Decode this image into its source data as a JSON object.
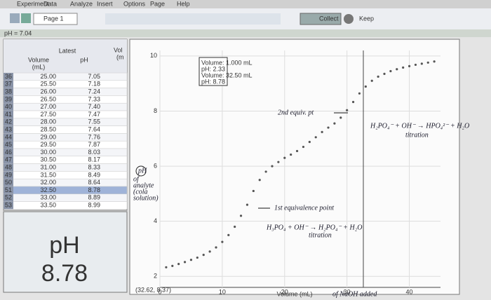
{
  "menu": [
    "Experiment",
    "Data",
    "Analyze",
    "Insert",
    "Options",
    "Page",
    "Help"
  ],
  "toolbar": {
    "page": "Page 1",
    "collect": "Collect",
    "keep": "Keep"
  },
  "status": "pH = 7.04",
  "table": {
    "title": "Latest",
    "headers": [
      {
        "name": "Volume",
        "unit": "(mL)"
      },
      {
        "name": "pH"
      },
      {
        "name": "Vol",
        "unit": "(m"
      }
    ],
    "rows": [
      [
        "36",
        "25.00",
        "7.05"
      ],
      [
        "37",
        "25.50",
        "7.18"
      ],
      [
        "38",
        "26.00",
        "7.24"
      ],
      [
        "39",
        "26.50",
        "7.33"
      ],
      [
        "40",
        "27.00",
        "7.40"
      ],
      [
        "41",
        "27.50",
        "7.47"
      ],
      [
        "42",
        "28.00",
        "7.55"
      ],
      [
        "43",
        "28.50",
        "7.64"
      ],
      [
        "44",
        "29.00",
        "7.76"
      ],
      [
        "45",
        "29.50",
        "7.87"
      ],
      [
        "46",
        "30.00",
        "8.03"
      ],
      [
        "47",
        "30.50",
        "8.17"
      ],
      [
        "48",
        "31.00",
        "8.33"
      ],
      [
        "49",
        "31.50",
        "8.49"
      ],
      [
        "50",
        "32.00",
        "8.64"
      ],
      [
        "51",
        "32.50",
        "8.78"
      ],
      [
        "52",
        "33.00",
        "8.89"
      ],
      [
        "53",
        "33.50",
        "8.99"
      ]
    ]
  },
  "meter": {
    "label": "pH",
    "value": "8.78"
  },
  "graph": {
    "xlim": [
      0,
      45
    ],
    "ylim": [
      1.6,
      10.2
    ],
    "xticks": [
      0,
      10,
      20,
      30,
      40
    ],
    "yticks": [
      2,
      4,
      6,
      8,
      10
    ],
    "x_label": "Volume (mL)",
    "cursor_readout": "(32.62, 8.37)",
    "examine": [
      "Volume: 1.000 mL",
      "pH: 2.33",
      "Volume: 32.50 mL",
      "pH: 8.78"
    ],
    "points": {
      "x": [
        1,
        2,
        3,
        4,
        5,
        6,
        7,
        8,
        9,
        10,
        11,
        12,
        13,
        14,
        15,
        16,
        17,
        18,
        19,
        20,
        21,
        22,
        23,
        24,
        25,
        26,
        27,
        28,
        29,
        30,
        31,
        32,
        33,
        34,
        35,
        36,
        37,
        38,
        39,
        40,
        41,
        42,
        43,
        44
      ],
      "y": [
        2.33,
        2.38,
        2.45,
        2.52,
        2.6,
        2.68,
        2.78,
        2.9,
        3.05,
        3.25,
        3.5,
        3.8,
        4.2,
        4.6,
        5.1,
        5.5,
        5.8,
        6.0,
        6.15,
        6.3,
        6.42,
        6.55,
        6.7,
        6.88,
        7.05,
        7.24,
        7.4,
        7.55,
        7.76,
        8.03,
        8.33,
        8.64,
        8.89,
        9.1,
        9.25,
        9.35,
        9.45,
        9.52,
        9.58,
        9.63,
        9.68,
        9.72,
        9.76,
        9.8
      ]
    },
    "annotations": {
      "second_equiv": "2nd equiv. pt",
      "second_reaction": "H₂PO₄⁻ + OH⁻ → HPO₄²⁻ + H₂O",
      "second_note": "titration",
      "first_equiv": "1st equivalence point",
      "first_reaction": "H₃PO₄ + OH⁻ → H₂PO₄⁻ + H₂O",
      "first_note": "titration",
      "analyte": [
        "pH",
        "of",
        "analyte",
        "(cola",
        "solution)"
      ],
      "naoh": "of NaOH added"
    }
  }
}
